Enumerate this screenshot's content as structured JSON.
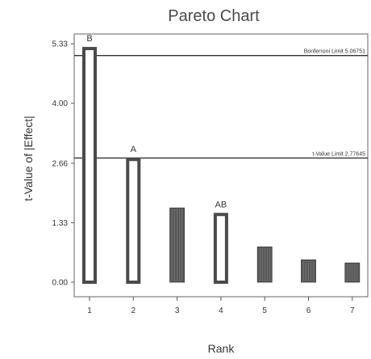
{
  "chart_data": {
    "type": "bar",
    "title": "Pareto Chart",
    "xlabel": "Rank",
    "ylabel": "t-Value of |Effect|",
    "categories": [
      "1",
      "2",
      "3",
      "4",
      "5",
      "6",
      "7"
    ],
    "values": [
      5.26,
      2.78,
      1.66,
      1.55,
      0.79,
      0.5,
      0.43
    ],
    "bar_labels": [
      "B",
      "A",
      "",
      "AB",
      "",
      "",
      ""
    ],
    "bar_styles": [
      "outline",
      "outline",
      "filled",
      "outline",
      "filled",
      "filled",
      "filled"
    ],
    "yticks": [
      "0.00",
      "1.33",
      "2.66",
      "4.00",
      "5.33"
    ],
    "ylim": [
      0,
      5.55
    ],
    "reference_lines": [
      {
        "label": "Bonferroni Limit 5.06751",
        "value": 5.06751
      },
      {
        "label": "t-Value Limit 2.77645",
        "value": 2.77645
      }
    ],
    "colors": {
      "outline_bar": "#4a4a4a",
      "filled_bar": "#5a5a5a",
      "axis": "#555555"
    }
  }
}
